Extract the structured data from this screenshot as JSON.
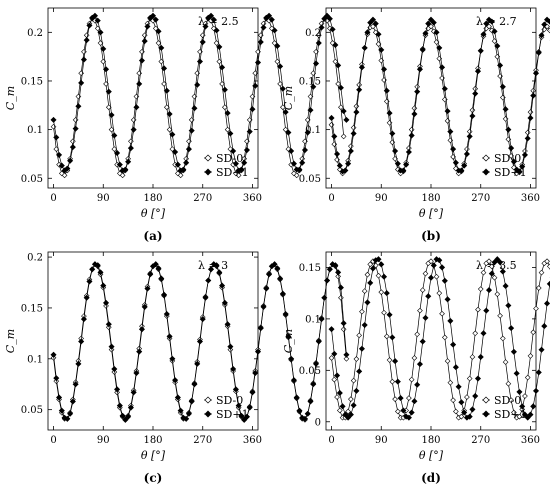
{
  "chart_data": [
    {
      "type": "line",
      "panel": "a",
      "caption": "(a)",
      "annotation": "λ = 2.5",
      "xlabel": "θ [°]",
      "ylabel": "C_m",
      "xlim": [
        -10,
        370
      ],
      "ylim": [
        0.04,
        0.225
      ],
      "xticks": [
        0,
        90,
        180,
        270,
        360
      ],
      "yticks": [
        0.05,
        0.1,
        0.15,
        0.2
      ],
      "ytick_labels": [
        "0.05",
        "0.1",
        "0.15",
        "0.2"
      ],
      "legend_position": "bottom-right",
      "grid": false,
      "series": [
        {
          "name": "SD-0",
          "marker": "open-diamond",
          "x0": 0,
          "dx": 5,
          "values": [
            0.103,
            0.08,
            0.064,
            0.055,
            0.053,
            0.058,
            0.07,
            0.088,
            0.11,
            0.134,
            0.158,
            0.18,
            0.197,
            0.209,
            0.214,
            0.212,
            0.204,
            0.189,
            0.17,
            0.147,
            0.123,
            0.1,
            0.08,
            0.064,
            0.055,
            0.053,
            0.058,
            0.07,
            0.088,
            0.11,
            0.134,
            0.158,
            0.18,
            0.197,
            0.209,
            0.214,
            0.212,
            0.204,
            0.189,
            0.17,
            0.147,
            0.123,
            0.1,
            0.08,
            0.064,
            0.055,
            0.053,
            0.058,
            0.07,
            0.088,
            0.11,
            0.134,
            0.158,
            0.18,
            0.197,
            0.209,
            0.214,
            0.212,
            0.204,
            0.189,
            0.17,
            0.147,
            0.123,
            0.1,
            0.08,
            0.064,
            0.055,
            0.053,
            0.058,
            0.07,
            0.088,
            0.11,
            0.134,
            0.158,
            0.18,
            0.197,
            0.209,
            0.214,
            0.212,
            0.204,
            0.189,
            0.17,
            0.147,
            0.123,
            0.1,
            0.08,
            0.064,
            0.055,
            0.053,
            0.058,
            0.07,
            0.088,
            0.11,
            0.134,
            0.158,
            0.18,
            0.197,
            0.209,
            0.214,
            0.212,
            0.204,
            0.189,
            0.17,
            0.147,
            0.123,
            0.093
          ]
        },
        {
          "name": "SD+1",
          "marker": "filled-diamond",
          "x0": 0,
          "dx": 5,
          "values": [
            0.11,
            0.092,
            0.074,
            0.063,
            0.058,
            0.06,
            0.068,
            0.082,
            0.101,
            0.124,
            0.148,
            0.172,
            0.192,
            0.207,
            0.215,
            0.217,
            0.212,
            0.2,
            0.183,
            0.162,
            0.139,
            0.115,
            0.094,
            0.076,
            0.064,
            0.058,
            0.059,
            0.067,
            0.081,
            0.1,
            0.123,
            0.147,
            0.171,
            0.191,
            0.206,
            0.215,
            0.217,
            0.213,
            0.201,
            0.184,
            0.163,
            0.14,
            0.116,
            0.095,
            0.077,
            0.064,
            0.058,
            0.059,
            0.066,
            0.08,
            0.099,
            0.122,
            0.146,
            0.17,
            0.19,
            0.206,
            0.215,
            0.217,
            0.213,
            0.202,
            0.185,
            0.164,
            0.141,
            0.117,
            0.096,
            0.078,
            0.065,
            0.058,
            0.059,
            0.066,
            0.079,
            0.098,
            0.121,
            0.145,
            0.169,
            0.19,
            0.205,
            0.215,
            0.217,
            0.213,
            0.202,
            0.186,
            0.165,
            0.142,
            0.118,
            0.097,
            0.078,
            0.065,
            0.059,
            0.059,
            0.066,
            0.079,
            0.097,
            0.12,
            0.144,
            0.168,
            0.189,
            0.205,
            0.214,
            0.217,
            0.214,
            0.203,
            0.187,
            0.166,
            0.143,
            0.119,
            0.11
          ]
        }
      ]
    },
    {
      "type": "line",
      "panel": "b",
      "caption": "(b)",
      "annotation": "λ = 2.7",
      "xlabel": "θ [°]",
      "ylabel": "C_m",
      "xlim": [
        -10,
        370
      ],
      "ylim": [
        0.04,
        0.225
      ],
      "xticks": [
        0,
        90,
        180,
        270,
        360
      ],
      "yticks": [
        0.05,
        0.1,
        0.15,
        0.2
      ],
      "ytick_labels": [
        "0.05",
        "0.1",
        "0.15",
        "0.2"
      ],
      "legend_position": "bottom-right",
      "grid": false,
      "series": [
        {
          "name": "SD-0",
          "marker": "open-diamond",
          "x0": 0,
          "dx": 5,
          "values": [
            0.105,
            0.085,
            0.069,
            0.059,
            0.055,
            0.058,
            0.068,
            0.083,
            0.102,
            0.124,
            0.146,
            0.167,
            0.184,
            0.198,
            0.205,
            0.206,
            0.2,
            0.188,
            0.171,
            0.151,
            0.129,
            0.107,
            0.087,
            0.07,
            0.059,
            0.055,
            0.057,
            0.066,
            0.081,
            0.1,
            0.122,
            0.144,
            0.165,
            0.183,
            0.197,
            0.204,
            0.206,
            0.201,
            0.19,
            0.173,
            0.153,
            0.131,
            0.109,
            0.089,
            0.072,
            0.06,
            0.055,
            0.057,
            0.065,
            0.08,
            0.098,
            0.12,
            0.142,
            0.163,
            0.181,
            0.196,
            0.204,
            0.206,
            0.202,
            0.191,
            0.175,
            0.155,
            0.133,
            0.111,
            0.09,
            0.073,
            0.061,
            0.055,
            0.056,
            0.064,
            0.078,
            0.097,
            0.118,
            0.14,
            0.161,
            0.18,
            0.195,
            0.203,
            0.206,
            0.202,
            0.192,
            0.176,
            0.157,
            0.135,
            0.113,
            0.092,
            0.075,
            0.062,
            0.056,
            0.056,
            0.063,
            0.077,
            0.095,
            0.116,
            0.138,
            0.159,
            0.178,
            0.194,
            0.203,
            0.206,
            0.203,
            0.193,
            0.178,
            0.159,
            0.135,
            0.098
          ]
        },
        {
          "name": "SD+1",
          "marker": "filled-diamond",
          "x0": 0,
          "dx": 5,
          "values": [
            0.112,
            0.093,
            0.075,
            0.063,
            0.057,
            0.058,
            0.065,
            0.078,
            0.096,
            0.118,
            0.141,
            0.164,
            0.184,
            0.2,
            0.21,
            0.213,
            0.209,
            0.198,
            0.182,
            0.162,
            0.14,
            0.117,
            0.096,
            0.078,
            0.065,
            0.058,
            0.058,
            0.064,
            0.077,
            0.094,
            0.116,
            0.139,
            0.162,
            0.182,
            0.199,
            0.209,
            0.213,
            0.21,
            0.2,
            0.184,
            0.164,
            0.142,
            0.119,
            0.098,
            0.08,
            0.066,
            0.058,
            0.058,
            0.063,
            0.075,
            0.093,
            0.114,
            0.137,
            0.16,
            0.181,
            0.198,
            0.209,
            0.213,
            0.211,
            0.201,
            0.186,
            0.166,
            0.144,
            0.121,
            0.1,
            0.081,
            0.067,
            0.059,
            0.057,
            0.062,
            0.074,
            0.091,
            0.112,
            0.135,
            0.158,
            0.179,
            0.197,
            0.208,
            0.213,
            0.211,
            0.202,
            0.187,
            0.168,
            0.146,
            0.123,
            0.101,
            0.082,
            0.068,
            0.059,
            0.057,
            0.062,
            0.073,
            0.09,
            0.11,
            0.133,
            0.156,
            0.178,
            0.196,
            0.208,
            0.213,
            0.211,
            0.203,
            0.189,
            0.17,
            0.147,
            0.123,
            0.105
          ]
        }
      ]
    },
    {
      "type": "line",
      "panel": "c",
      "caption": "(c)",
      "annotation": "λ = 3",
      "xlabel": "θ [°]",
      "ylabel": "C_m",
      "xlim": [
        -10,
        370
      ],
      "ylim": [
        0.03,
        0.205
      ],
      "xticks": [
        0,
        90,
        180,
        270,
        360
      ],
      "yticks": [
        0.05,
        0.1,
        0.15,
        0.2
      ],
      "ytick_labels": [
        "0.05",
        "0.1",
        "0.15",
        "0.2"
      ],
      "legend_position": "bottom-right",
      "grid": false,
      "series": [
        {
          "name": "SD-0",
          "marker": "open-diamond",
          "x0": 0,
          "dx": 5,
          "values": [
            0.101,
            0.078,
            0.06,
            0.047,
            0.041,
            0.041,
            0.047,
            0.06,
            0.077,
            0.098,
            0.12,
            0.142,
            0.162,
            0.178,
            0.188,
            0.193,
            0.191,
            0.183,
            0.17,
            0.152,
            0.131,
            0.109,
            0.087,
            0.067,
            0.052,
            0.043,
            0.04,
            0.044,
            0.054,
            0.069,
            0.088,
            0.11,
            0.132,
            0.153,
            0.171,
            0.184,
            0.191,
            0.193,
            0.188,
            0.178,
            0.162,
            0.142,
            0.12,
            0.098,
            0.077,
            0.06,
            0.047,
            0.041,
            0.041,
            0.047,
            0.059,
            0.076,
            0.097,
            0.119,
            0.141,
            0.161,
            0.177,
            0.188,
            0.193,
            0.191,
            0.184,
            0.17,
            0.153,
            0.132,
            0.109,
            0.088,
            0.068,
            0.052,
            0.043,
            0.04,
            0.043,
            0.053,
            0.068,
            0.088,
            0.109,
            0.131,
            0.152,
            0.17,
            0.184,
            0.191,
            0.193,
            0.188,
            0.178,
            0.163,
            0.143,
            0.121,
            0.099,
            0.078,
            0.061,
            0.048,
            0.041,
            0.04,
            0.046,
            0.059,
            0.076,
            0.096,
            0.118,
            0.14,
            0.16,
            0.177,
            0.188,
            0.193,
            0.191,
            0.181,
            0.16,
            0.129,
            0.1
          ]
        },
        {
          "name": "SD+1",
          "marker": "filled-diamond",
          "x0": 0,
          "dx": 5,
          "values": [
            0.104,
            0.081,
            0.062,
            0.049,
            0.042,
            0.041,
            0.046,
            0.058,
            0.075,
            0.095,
            0.117,
            0.139,
            0.16,
            0.176,
            0.188,
            0.193,
            0.192,
            0.185,
            0.172,
            0.155,
            0.134,
            0.112,
            0.09,
            0.07,
            0.054,
            0.044,
            0.04,
            0.043,
            0.052,
            0.067,
            0.086,
            0.107,
            0.129,
            0.151,
            0.169,
            0.183,
            0.191,
            0.193,
            0.189,
            0.179,
            0.163,
            0.144,
            0.122,
            0.1,
            0.079,
            0.062,
            0.049,
            0.042,
            0.041,
            0.046,
            0.058,
            0.075,
            0.095,
            0.117,
            0.139,
            0.16,
            0.177,
            0.188,
            0.193,
            0.192,
            0.185,
            0.172,
            0.155,
            0.134,
            0.112,
            0.09,
            0.07,
            0.054,
            0.044,
            0.04,
            0.043,
            0.052,
            0.067,
            0.086,
            0.107,
            0.13,
            0.151,
            0.169,
            0.183,
            0.191,
            0.193,
            0.189,
            0.179,
            0.164,
            0.144,
            0.122,
            0.1,
            0.079,
            0.062,
            0.049,
            0.042,
            0.041,
            0.046,
            0.058,
            0.075,
            0.095,
            0.117,
            0.139,
            0.16,
            0.177,
            0.188,
            0.193,
            0.192,
            0.185,
            0.17,
            0.135,
            0.104
          ]
        }
      ]
    },
    {
      "type": "line",
      "panel": "d",
      "caption": "(d)",
      "annotation": "λ = 3.5",
      "xlabel": "θ [°]",
      "ylabel": "C_m",
      "xlim": [
        -10,
        370
      ],
      "ylim": [
        -0.008,
        0.165
      ],
      "xticks": [
        0,
        90,
        180,
        270,
        360
      ],
      "yticks": [
        0,
        0.05,
        0.1,
        0.15
      ],
      "ytick_labels": [
        "0",
        "0.05",
        "0.1",
        "0.15"
      ],
      "legend_position": "bottom-right",
      "grid": false,
      "series": [
        {
          "name": "SD-0",
          "marker": "open-diamond",
          "x0": 0,
          "dx": 5,
          "values": [
            0.062,
            0.041,
            0.024,
            0.011,
            0.004,
            0.004,
            0.01,
            0.022,
            0.04,
            0.061,
            0.084,
            0.107,
            0.127,
            0.143,
            0.153,
            0.156,
            0.152,
            0.142,
            0.126,
            0.106,
            0.083,
            0.06,
            0.039,
            0.022,
            0.01,
            0.004,
            0.004,
            0.011,
            0.023,
            0.041,
            0.062,
            0.085,
            0.108,
            0.128,
            0.144,
            0.154,
            0.156,
            0.152,
            0.141,
            0.125,
            0.105,
            0.082,
            0.059,
            0.038,
            0.021,
            0.01,
            0.004,
            0.005,
            0.011,
            0.024,
            0.042,
            0.063,
            0.086,
            0.109,
            0.129,
            0.145,
            0.154,
            0.156,
            0.151,
            0.14,
            0.124,
            0.103,
            0.081,
            0.058,
            0.037,
            0.021,
            0.009,
            0.004,
            0.005,
            0.012,
            0.025,
            0.043,
            0.064,
            0.087,
            0.11,
            0.13,
            0.145,
            0.154,
            0.156,
            0.151,
            0.14,
            0.123,
            0.102,
            0.079,
            0.057,
            0.036,
            0.02,
            0.009,
            0.004,
            0.005,
            0.012,
            0.026,
            0.044,
            0.066,
            0.089,
            0.111,
            0.131,
            0.146,
            0.155,
            0.156,
            0.15,
            0.139,
            0.122,
            0.101,
            0.075
          ]
        },
        {
          "name": "SD+1",
          "marker": "filled-diamond",
          "x0": 0,
          "dx": 5,
          "values": [
            0.09,
            0.066,
            0.045,
            0.028,
            0.015,
            0.007,
            0.004,
            0.007,
            0.016,
            0.03,
            0.049,
            0.071,
            0.094,
            0.116,
            0.135,
            0.149,
            0.157,
            0.158,
            0.153,
            0.141,
            0.125,
            0.104,
            0.082,
            0.059,
            0.039,
            0.023,
            0.011,
            0.005,
            0.004,
            0.009,
            0.02,
            0.036,
            0.056,
            0.078,
            0.101,
            0.122,
            0.14,
            0.152,
            0.158,
            0.157,
            0.15,
            0.137,
            0.119,
            0.098,
            0.075,
            0.053,
            0.034,
            0.019,
            0.009,
            0.004,
            0.005,
            0.012,
            0.025,
            0.042,
            0.063,
            0.086,
            0.108,
            0.128,
            0.144,
            0.155,
            0.158,
            0.155,
            0.146,
            0.132,
            0.113,
            0.091,
            0.068,
            0.047,
            0.029,
            0.015,
            0.007,
            0.004,
            0.007,
            0.015,
            0.03,
            0.048,
            0.07,
            0.093,
            0.115,
            0.134,
            0.148,
            0.157,
            0.158,
            0.153,
            0.142,
            0.126,
            0.106,
            0.084,
            0.061,
            0.041,
            0.024,
            0.012,
            0.005,
            0.004,
            0.008,
            0.019,
            0.035,
            0.055,
            0.077,
            0.1,
            0.121,
            0.139,
            0.152,
            0.158,
            0.157,
            0.15,
            0.13,
            0.1
          ]
        }
      ]
    }
  ]
}
